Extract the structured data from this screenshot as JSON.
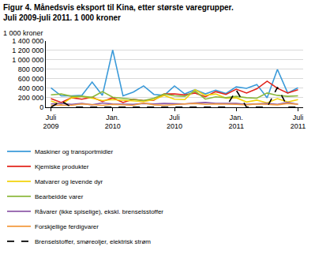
{
  "chart_data": {
    "type": "line",
    "title": "Figur 4. Månedsvis eksport til Kina, etter største varegrupper.\nJuli 2009-juli 2011. 1 000 kroner",
    "y_label": "1 000 kroner",
    "categories": [
      "Juli\n2009",
      null,
      null,
      null,
      null,
      null,
      "Jan.\n2010",
      null,
      null,
      null,
      null,
      null,
      "Juli\n2010",
      null,
      null,
      null,
      null,
      null,
      "Jan.\n2011",
      null,
      null,
      null,
      null,
      null,
      "Juli\n2011"
    ],
    "series": [
      {
        "name": "Maskiner og transportmidler",
        "color": "#3a9ad9",
        "line_style": "solid",
        "values": [
          410000,
          240000,
          240000,
          250000,
          530000,
          250000,
          1210000,
          240000,
          320000,
          450000,
          270000,
          250000,
          450000,
          280000,
          370000,
          280000,
          360000,
          290000,
          430000,
          400000,
          480000,
          200000,
          800000,
          300000,
          410000
        ]
      },
      {
        "name": "Kjemiske produkter",
        "color": "#e2231a",
        "line_style": "solid",
        "values": [
          180000,
          100000,
          200000,
          170000,
          210000,
          120000,
          200000,
          100000,
          170000,
          140000,
          150000,
          280000,
          280000,
          260000,
          300000,
          220000,
          330000,
          270000,
          380000,
          300000,
          390000,
          550000,
          400000,
          300000,
          370000
        ]
      },
      {
        "name": "Matvarer og levende dyr",
        "color": "#f2d20a",
        "line_style": "solid",
        "values": [
          130000,
          60000,
          200000,
          230000,
          190000,
          140000,
          160000,
          150000,
          130000,
          120000,
          160000,
          250000,
          170000,
          160000,
          370000,
          250000,
          280000,
          190000,
          200000,
          110000,
          150000,
          90000,
          180000,
          110000,
          160000
        ]
      },
      {
        "name": "Bearbeidde varer",
        "color": "#8cb83c",
        "line_style": "solid",
        "values": [
          260000,
          280000,
          230000,
          230000,
          210000,
          330000,
          210000,
          190000,
          170000,
          140000,
          190000,
          280000,
          240000,
          230000,
          340000,
          170000,
          220000,
          200000,
          230000,
          200000,
          190000,
          300000,
          250000,
          230000,
          240000
        ]
      },
      {
        "name": "Råvarer (ikke spiselige), ekskl. brenselsstoffer",
        "color": "#8e5aa8",
        "line_style": "solid",
        "values": [
          70000,
          80000,
          60000,
          80000,
          50000,
          90000,
          70000,
          70000,
          60000,
          80000,
          70000,
          80000,
          80000,
          70000,
          90000,
          100000,
          80000,
          80000,
          80000,
          60000,
          70000,
          80000,
          60000,
          100000,
          60000
        ]
      },
      {
        "name": "Forskjellige ferdigvarer",
        "color": "#f39a3e",
        "line_style": "solid",
        "values": [
          40000,
          40000,
          40000,
          70000,
          50000,
          40000,
          60000,
          50000,
          40000,
          90000,
          50000,
          40000,
          60000,
          70000,
          80000,
          60000,
          70000,
          70000,
          60000,
          50000,
          70000,
          60000,
          50000,
          80000,
          60000
        ]
      },
      {
        "name": "Brenselstoffer, smøreoljer, elektrisk strøm",
        "color": "#000000",
        "line_style": "dashed",
        "values": [
          0,
          130000,
          0,
          0,
          0,
          0,
          0,
          0,
          0,
          0,
          0,
          0,
          0,
          0,
          0,
          0,
          0,
          0,
          360000,
          0,
          0,
          0,
          420000,
          0,
          0
        ]
      }
    ],
    "ylim": [
      0,
      1400000
    ],
    "yticks": [
      0,
      {
        "value": 200000,
        "label": "200 000"
      },
      {
        "value": 400000,
        "label": "400 000"
      },
      {
        "value": 600000,
        "label": "600 000"
      },
      {
        "value": 800000,
        "label": "800 000"
      },
      {
        "value": 1000000,
        "label": "1 000 000"
      },
      {
        "value": 1200000,
        "label": "1 200 000"
      },
      {
        "value": 1400000,
        "label": "1 400 000"
      }
    ],
    "grid": true,
    "legend": "bottom"
  }
}
